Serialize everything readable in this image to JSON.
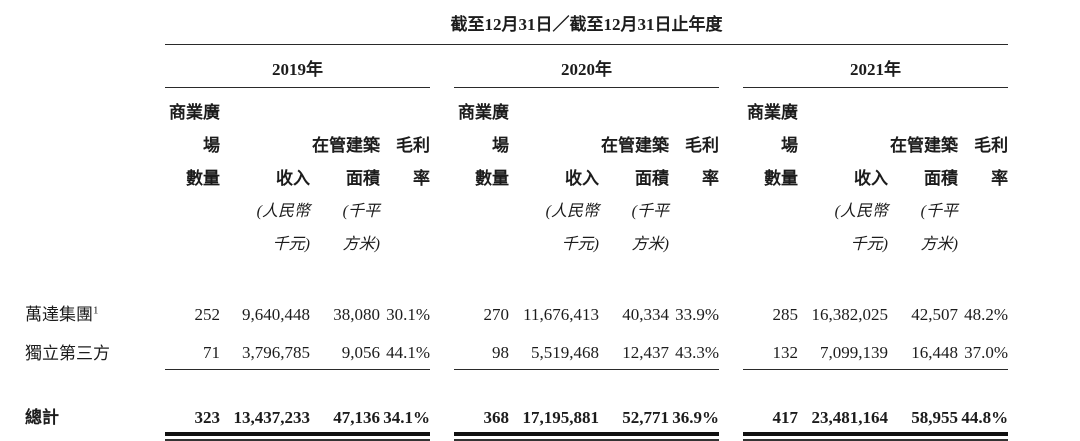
{
  "table": {
    "title": "截至12月31日／截至12月31日止年度",
    "years": [
      "2019年",
      "2020年",
      "2021年"
    ],
    "column_headers": {
      "plaza_count": "商業廣場\n數量",
      "revenue": "收入",
      "gfa": "在管建築\n面積",
      "gross_margin": "毛利率",
      "revenue_unit": "(人民幣\n千元)",
      "gfa_unit": "(千平\n方米)"
    },
    "rows": [
      {
        "label": "萬達集團",
        "footnote_marker": "1",
        "values": [
          "252",
          "9,640,448",
          "38,080",
          "30.1%",
          "270",
          "11,676,413",
          "40,334",
          "33.9%",
          "285",
          "16,382,025",
          "42,507",
          "48.2%"
        ]
      },
      {
        "label": "獨立第三方",
        "values": [
          "71",
          "3,796,785",
          "9,056",
          "44.1%",
          "98",
          "5,519,468",
          "12,437",
          "43.3%",
          "132",
          "7,099,139",
          "16,448",
          "37.0%"
        ]
      }
    ],
    "total": {
      "label": "總計",
      "values": [
        "323",
        "13,437,233",
        "47,136",
        "34.1%",
        "368",
        "17,195,881",
        "52,771",
        "36.9%",
        "417",
        "23,481,164",
        "58,955",
        "44.8%"
      ]
    }
  }
}
